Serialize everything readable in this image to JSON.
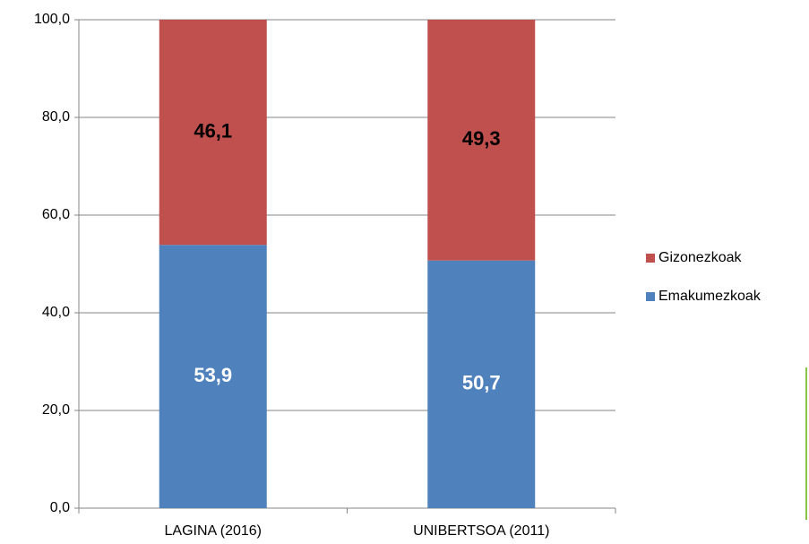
{
  "chart_data": {
    "type": "stacked_bar",
    "categories": [
      "LAGINA (2016)",
      "UNIBERTSOA (2011)"
    ],
    "series": [
      {
        "name": "Emakumezkoak",
        "color": "#4f81bd",
        "values": [
          53.9,
          50.7
        ],
        "value_labels": [
          "53,9",
          "50,7"
        ]
      },
      {
        "name": "Gizonezkoak",
        "color": "#c0504d",
        "values": [
          46.1,
          49.3
        ],
        "value_labels": [
          "46,1",
          "49,3"
        ]
      }
    ],
    "ylim": [
      0,
      100
    ],
    "yticks": [
      {
        "value": 0,
        "label": "0,0"
      },
      {
        "value": 20,
        "label": "20,0"
      },
      {
        "value": 40,
        "label": "40,0"
      },
      {
        "value": 60,
        "label": "60,0"
      },
      {
        "value": 80,
        "label": "80,0"
      },
      {
        "value": 100,
        "label": "100,0"
      }
    ],
    "grid": true
  }
}
